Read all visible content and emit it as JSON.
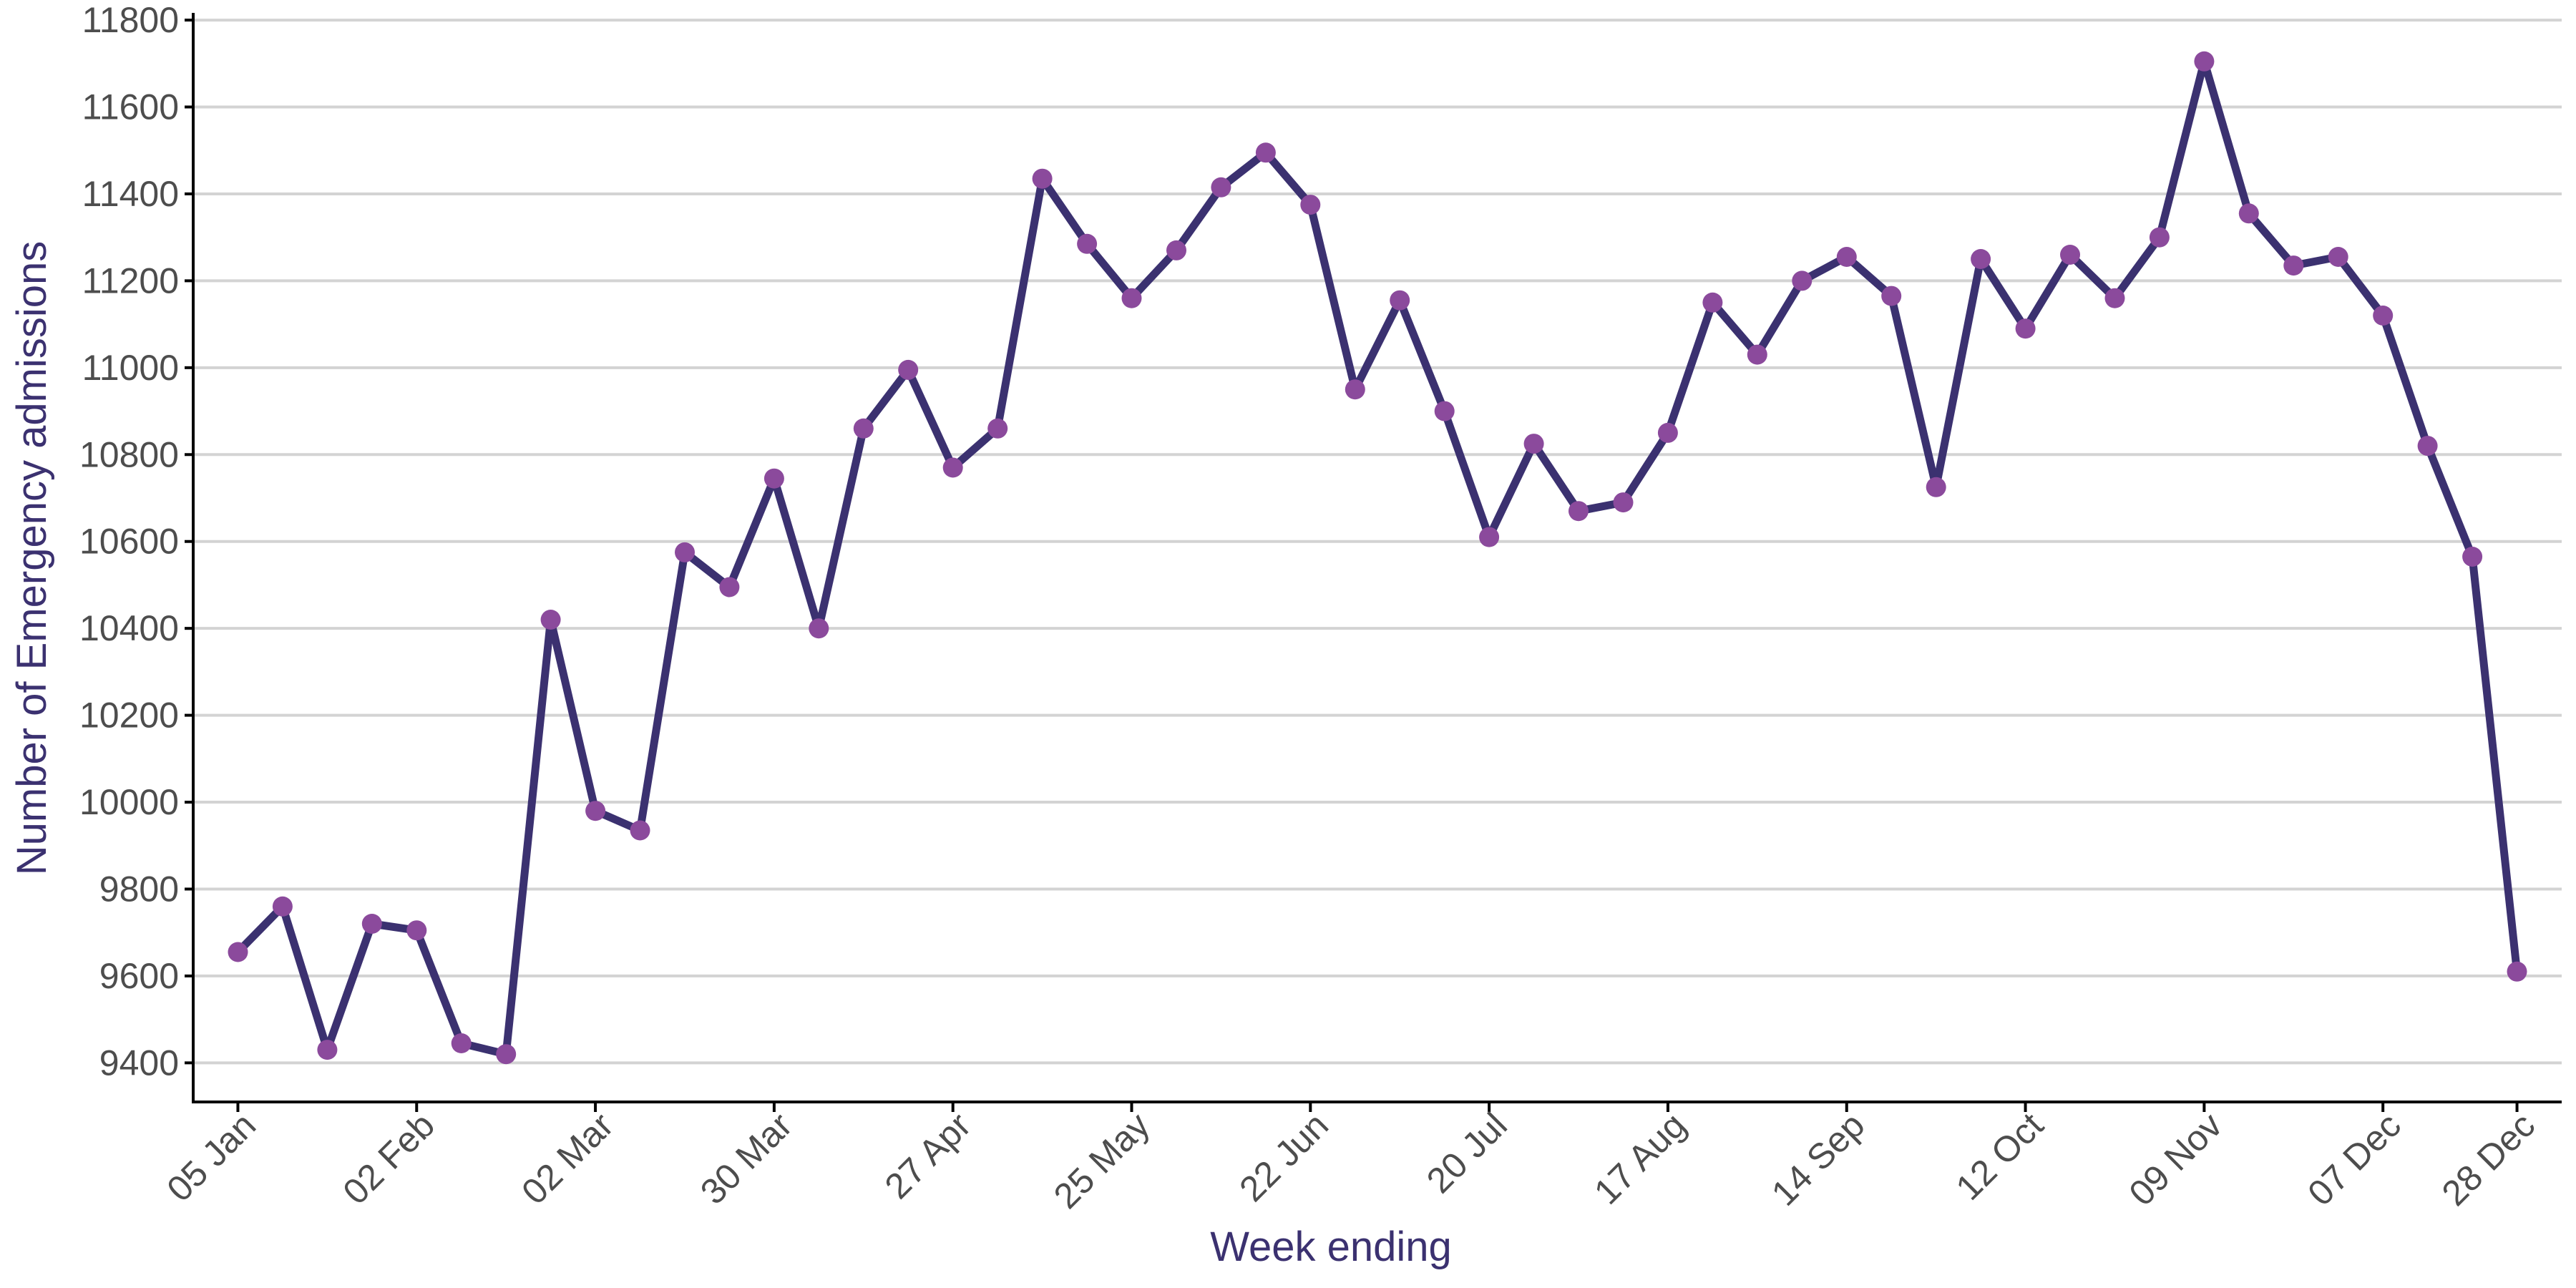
{
  "chart_data": {
    "type": "line",
    "xlabel": "Week ending",
    "ylabel": "Number of Emergency admissions",
    "ylim": [
      9310,
      11810
    ],
    "y_ticks": [
      9400,
      9600,
      9800,
      10000,
      10200,
      10400,
      10600,
      10800,
      11000,
      11200,
      11400,
      11600,
      11800
    ],
    "x_tick_labels": [
      "05 Jan",
      "02 Feb",
      "02 Mar",
      "30 Mar",
      "27 Apr",
      "25 May",
      "22 Jun",
      "20 Jul",
      "17 Aug",
      "14 Sep",
      "12 Oct",
      "09 Nov",
      "07 Dec",
      "28 Dec"
    ],
    "x_tick_weeks": [
      1,
      5,
      9,
      13,
      17,
      21,
      25,
      29,
      33,
      37,
      41,
      45,
      49,
      52
    ],
    "grid": "horizontal",
    "line_color": "#3b3170",
    "marker_color": "#8b4a9c",
    "weeks": [
      1,
      2,
      3,
      4,
      5,
      6,
      7,
      8,
      9,
      10,
      11,
      12,
      13,
      14,
      15,
      16,
      17,
      18,
      19,
      20,
      21,
      22,
      23,
      24,
      25,
      26,
      27,
      28,
      29,
      30,
      31,
      32,
      33,
      34,
      35,
      36,
      37,
      38,
      39,
      40,
      41,
      42,
      43,
      44,
      45,
      46,
      47,
      48,
      49,
      50,
      51,
      52
    ],
    "values": [
      9655,
      9760,
      9430,
      9720,
      9705,
      9445,
      9420,
      10420,
      9980,
      9935,
      10575,
      10495,
      10745,
      10400,
      10860,
      10995,
      10770,
      10860,
      11435,
      11285,
      11160,
      11270,
      11415,
      11495,
      11375,
      10950,
      11155,
      10900,
      10610,
      10825,
      10670,
      10690,
      10850,
      11150,
      11030,
      11200,
      11255,
      11165,
      10725,
      11250,
      11090,
      11260,
      11160,
      11300,
      11705,
      11355,
      11235,
      11255,
      11120,
      10820,
      10565,
      9610
    ]
  }
}
